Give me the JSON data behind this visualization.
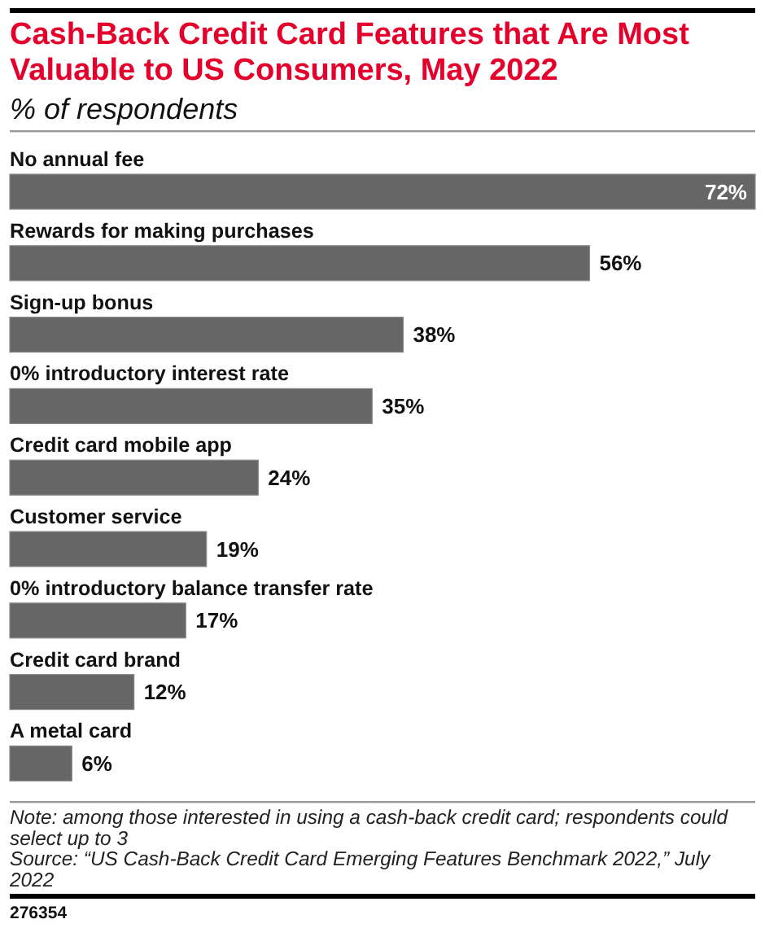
{
  "chart_data": {
    "type": "bar",
    "orientation": "horizontal",
    "title": "Cash-Back Credit Card Features that Are Most Valuable to US Consumers, May 2022",
    "subtitle": "% of respondents",
    "categories": [
      "No annual fee",
      "Rewards for making purchases",
      "Sign-up bonus",
      "0% introductory interest rate",
      "Credit card mobile app",
      "Customer service",
      "0% introductory balance transfer rate",
      "Credit card brand",
      "A metal card"
    ],
    "values": [
      72,
      56,
      38,
      35,
      24,
      19,
      17,
      12,
      6
    ],
    "value_labels": [
      "72%",
      "56%",
      "38%",
      "35%",
      "24%",
      "19%",
      "17%",
      "12%",
      "6%"
    ],
    "color": "#666666",
    "annotations": [
      "Note: among those interested in using a cash-back credit card; respondents could select up to 3",
      "Source: “US Cash-Back Credit Card Emerging Features Benchmark 2022,” July 2022",
      "276354"
    ]
  }
}
